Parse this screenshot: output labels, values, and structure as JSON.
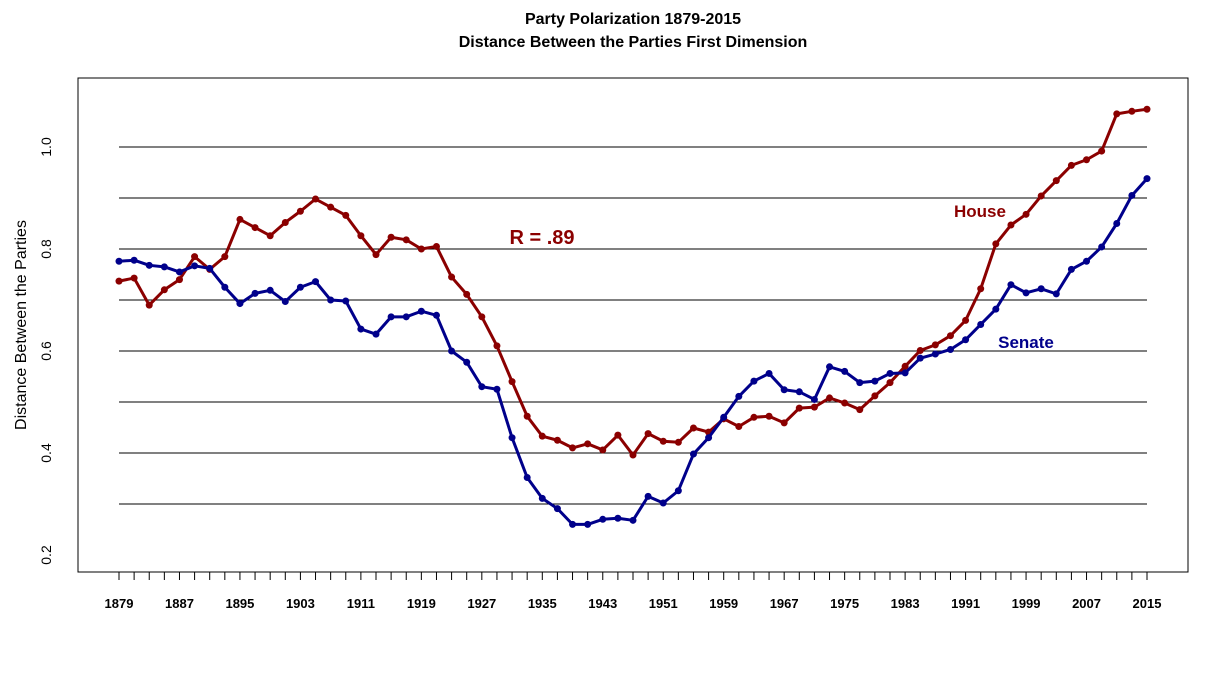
{
  "chart_data": {
    "type": "line",
    "title": "Party Polarization 1879-2015",
    "subtitle": "Distance Between the Parties First Dimension",
    "xlabel": "",
    "ylabel": "Distance Between the Parties",
    "ylim": [
      0.2,
      1.1
    ],
    "xlim": [
      1879,
      2015
    ],
    "y_ticks": [
      "0.2",
      "0.4",
      "0.6",
      "0.8",
      "1.0"
    ],
    "x_tick_labels": [
      "1879",
      "1887",
      "1895",
      "1903",
      "1911",
      "1919",
      "1927",
      "1935",
      "1943",
      "1951",
      "1959",
      "1967",
      "1975",
      "1983",
      "1991",
      "1999",
      "2007",
      "2015"
    ],
    "grid": "horizontal lines at 0.3 to 1.0",
    "annotation": "R = .89",
    "x": [
      1879,
      1881,
      1883,
      1885,
      1887,
      1889,
      1891,
      1893,
      1895,
      1897,
      1899,
      1901,
      1903,
      1905,
      1907,
      1909,
      1911,
      1913,
      1915,
      1917,
      1919,
      1921,
      1923,
      1925,
      1927,
      1929,
      1931,
      1933,
      1935,
      1937,
      1939,
      1941,
      1943,
      1945,
      1947,
      1949,
      1951,
      1953,
      1955,
      1957,
      1959,
      1961,
      1963,
      1965,
      1967,
      1969,
      1971,
      1973,
      1975,
      1977,
      1979,
      1981,
      1983,
      1985,
      1987,
      1989,
      1991,
      1993,
      1995,
      1997,
      1999,
      2001,
      2003,
      2005,
      2007,
      2009,
      2011,
      2013,
      2015
    ],
    "series": [
      {
        "name": "House",
        "color": "#8b0000",
        "values": [
          0.737,
          0.743,
          0.69,
          0.72,
          0.74,
          0.785,
          0.76,
          0.785,
          0.858,
          0.842,
          0.826,
          0.852,
          0.874,
          0.898,
          0.882,
          0.866,
          0.826,
          0.789,
          0.823,
          0.818,
          0.8,
          0.805,
          0.745,
          0.711,
          0.667,
          0.61,
          0.54,
          0.472,
          0.433,
          0.425,
          0.41,
          0.418,
          0.406,
          0.435,
          0.396,
          0.438,
          0.423,
          0.421,
          0.449,
          0.441,
          0.467,
          0.452,
          0.47,
          0.472,
          0.459,
          0.488,
          0.49,
          0.508,
          0.498,
          0.485,
          0.512,
          0.538,
          0.57,
          0.601,
          0.612,
          0.63,
          0.66,
          0.722,
          0.81,
          0.847,
          0.868,
          0.904,
          0.934,
          0.964,
          0.975,
          0.992,
          1.065,
          1.07,
          1.074
        ]
      },
      {
        "name": "Senate",
        "color": "#00008b",
        "values": [
          0.776,
          0.778,
          0.768,
          0.765,
          0.755,
          0.767,
          0.762,
          0.725,
          0.693,
          0.713,
          0.719,
          0.697,
          0.725,
          0.736,
          0.7,
          0.698,
          0.643,
          0.633,
          0.667,
          0.667,
          0.678,
          0.67,
          0.6,
          0.578,
          0.53,
          0.525,
          0.43,
          0.352,
          0.311,
          0.291,
          0.26,
          0.26,
          0.27,
          0.272,
          0.268,
          0.315,
          0.302,
          0.326,
          0.398,
          0.43,
          0.47,
          0.511,
          0.541,
          0.556,
          0.524,
          0.52,
          0.505,
          0.569,
          0.56,
          0.538,
          0.541,
          0.556,
          0.557,
          0.586,
          0.594,
          0.603,
          0.622,
          0.652,
          0.682,
          0.73,
          0.714,
          0.722,
          0.712,
          0.76,
          0.776,
          0.804,
          0.85,
          0.905,
          0.938
        ]
      }
    ]
  }
}
